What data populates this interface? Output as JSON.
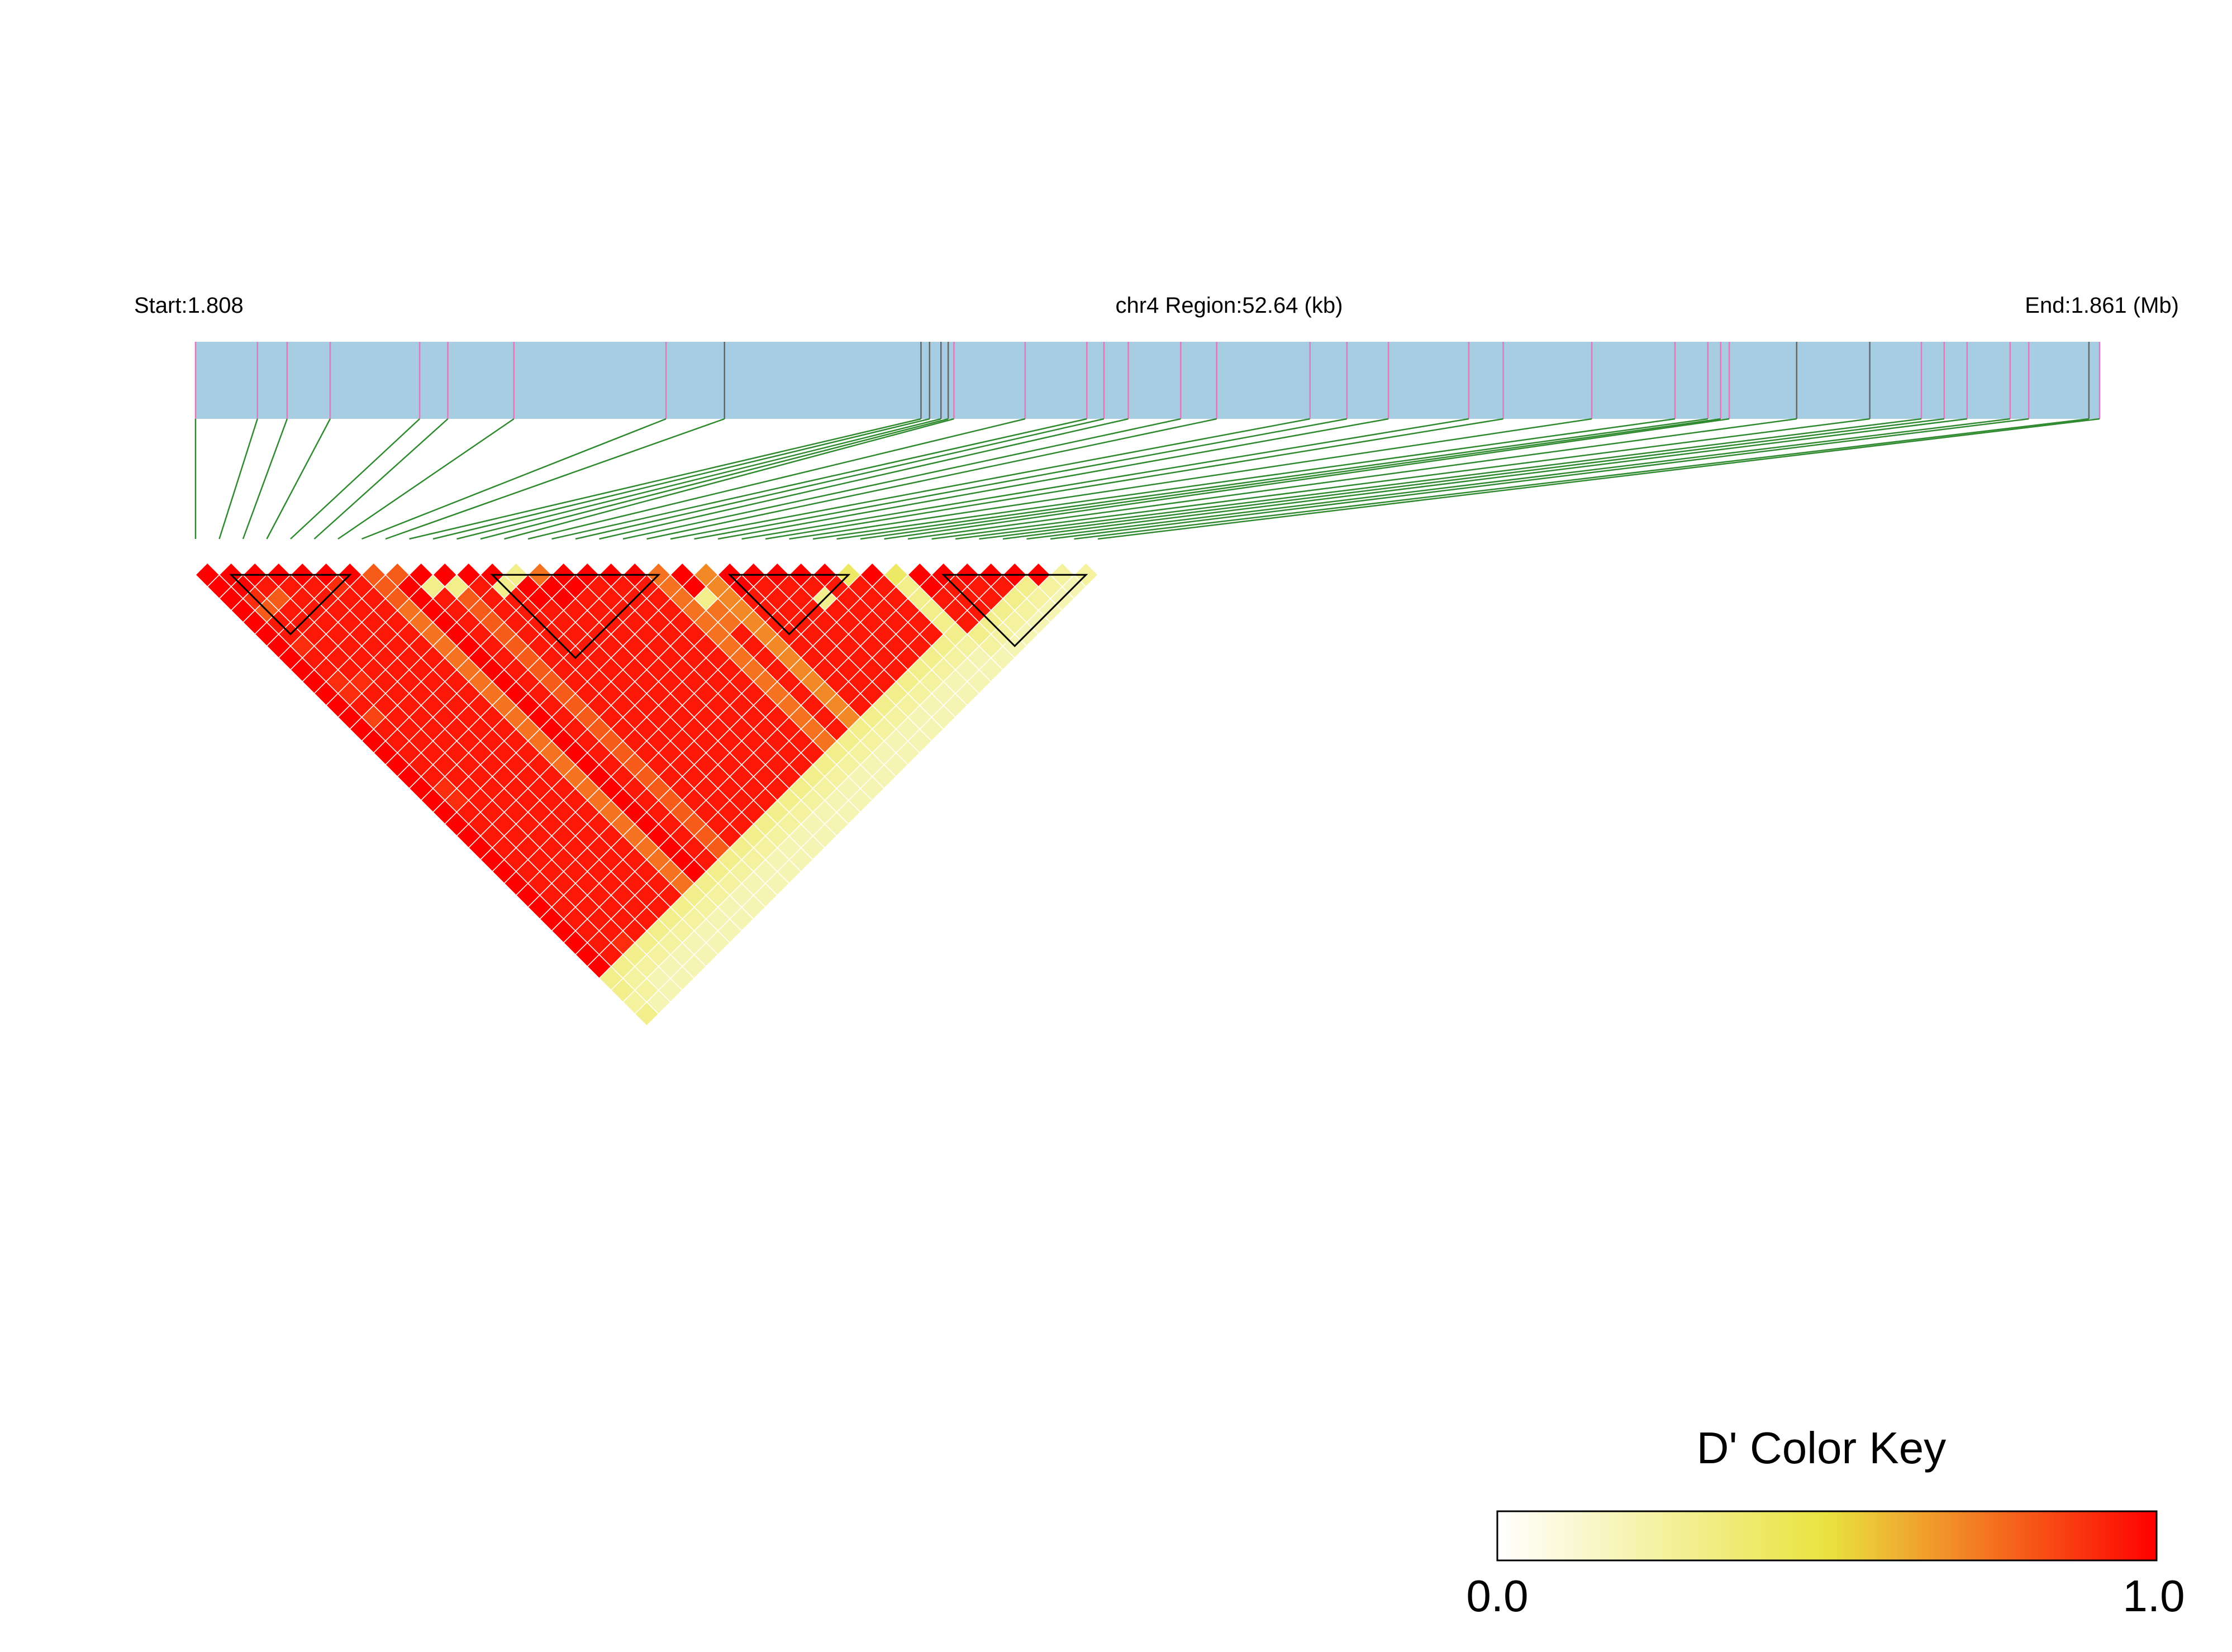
{
  "header": {
    "start_label": "Start:1.808",
    "region_label": "chr4 Region:52.64 (kb)",
    "end_label": "End:1.861 (Mb)"
  },
  "colors": {
    "track_fill": "#a7cde2",
    "snp_line_marked": "#e07ab8",
    "snp_line_plain": "#666666",
    "connector": "#2f8a2f",
    "block_outline": "#000000",
    "cell_border": "#ffffff",
    "scale": [
      "#ffffff",
      "#e9e33f",
      "#ff0000"
    ]
  },
  "snps": [
    {
      "pos": 0.0,
      "marked": true
    },
    {
      "pos": 0.0325,
      "marked": true
    },
    {
      "pos": 0.0481,
      "marked": true
    },
    {
      "pos": 0.0707,
      "marked": true
    },
    {
      "pos": 0.1177,
      "marked": true
    },
    {
      "pos": 0.1325,
      "marked": true
    },
    {
      "pos": 0.1672,
      "marked": true
    },
    {
      "pos": 0.2471,
      "marked": true
    },
    {
      "pos": 0.2778,
      "marked": false
    },
    {
      "pos": 0.381,
      "marked": false
    },
    {
      "pos": 0.3855,
      "marked": false
    },
    {
      "pos": 0.3915,
      "marked": false
    },
    {
      "pos": 0.3953,
      "marked": false
    },
    {
      "pos": 0.3983,
      "marked": true
    },
    {
      "pos": 0.4357,
      "marked": true
    },
    {
      "pos": 0.4681,
      "marked": true
    },
    {
      "pos": 0.4771,
      "marked": true
    },
    {
      "pos": 0.4899,
      "marked": true
    },
    {
      "pos": 0.5174,
      "marked": true
    },
    {
      "pos": 0.5363,
      "marked": true
    },
    {
      "pos": 0.5853,
      "marked": true
    },
    {
      "pos": 0.6047,
      "marked": true
    },
    {
      "pos": 0.6265,
      "marked": true
    },
    {
      "pos": 0.6687,
      "marked": true
    },
    {
      "pos": 0.6868,
      "marked": true
    },
    {
      "pos": 0.7333,
      "marked": true
    },
    {
      "pos": 0.777,
      "marked": true
    },
    {
      "pos": 0.7943,
      "marked": true
    },
    {
      "pos": 0.801,
      "marked": true
    },
    {
      "pos": 0.8055,
      "marked": true
    },
    {
      "pos": 0.8409,
      "marked": false
    },
    {
      "pos": 0.8793,
      "marked": false
    },
    {
      "pos": 0.9064,
      "marked": true
    },
    {
      "pos": 0.9184,
      "marked": true
    },
    {
      "pos": 0.9304,
      "marked": true
    },
    {
      "pos": 0.953,
      "marked": true
    },
    {
      "pos": 0.9628,
      "marked": true
    },
    {
      "pos": 0.9944,
      "marked": false
    },
    {
      "pos": 1.0,
      "marked": true
    }
  ],
  "matrix": {
    "n": 39,
    "d_prime_rows": [
      [
        1.0,
        1.0,
        1.0,
        1.0,
        1.0,
        1.0,
        1.0,
        1.0,
        1.0,
        1.0,
        1.0,
        1.0,
        1.0,
        1.0,
        1.0,
        1.0,
        1.0,
        1.0,
        1.0,
        1.0,
        1.0,
        1.0,
        1.0,
        1.0,
        1.0,
        1.0,
        1.0,
        1.0,
        1.0,
        1.0,
        1.0,
        1.0,
        1.0,
        1.0,
        0.3,
        0.3,
        0.25,
        0.3
      ],
      [
        1.0,
        1.0,
        0.9,
        0.8,
        0.95,
        0.95,
        0.9,
        0.95,
        0.95,
        0.9,
        0.9,
        0.95,
        0.85,
        0.95,
        0.95,
        0.95,
        0.95,
        0.95,
        0.9,
        0.9,
        0.95,
        0.95,
        0.95,
        0.95,
        0.95,
        0.95,
        0.95,
        0.95,
        0.95,
        0.95,
        0.95,
        0.95,
        0.95,
        0.3,
        0.25,
        0.25,
        0.2
      ],
      [
        1.0,
        0.95,
        0.8,
        0.95,
        0.95,
        0.95,
        0.95,
        0.95,
        0.95,
        0.9,
        0.95,
        0.95,
        0.95,
        0.95,
        0.95,
        0.95,
        0.95,
        0.95,
        0.95,
        0.95,
        0.95,
        0.95,
        0.95,
        0.95,
        0.95,
        0.95,
        0.95,
        0.95,
        0.95,
        0.95,
        0.95,
        0.9,
        0.3,
        0.25,
        0.2,
        0.2
      ],
      [
        1.0,
        0.95,
        0.95,
        0.95,
        0.95,
        0.95,
        0.95,
        0.95,
        0.95,
        0.95,
        0.95,
        0.95,
        0.95,
        0.95,
        0.95,
        0.95,
        0.95,
        0.95,
        0.95,
        0.95,
        0.95,
        0.95,
        0.95,
        0.95,
        0.95,
        0.95,
        0.95,
        0.95,
        0.95,
        0.95,
        0.95,
        0.3,
        0.25,
        0.2,
        0.2
      ],
      [
        1.0,
        0.95,
        0.95,
        0.95,
        0.95,
        0.95,
        0.95,
        0.95,
        0.95,
        0.95,
        0.95,
        0.95,
        0.95,
        0.95,
        0.95,
        0.95,
        0.95,
        0.95,
        0.95,
        0.95,
        0.95,
        0.95,
        0.95,
        0.95,
        0.95,
        0.95,
        0.95,
        0.95,
        0.95,
        0.95,
        0.3,
        0.25,
        0.2,
        0.2
      ],
      [
        1.0,
        0.9,
        0.95,
        0.95,
        0.95,
        0.95,
        0.95,
        0.95,
        0.95,
        0.95,
        0.95,
        0.95,
        0.95,
        0.95,
        0.95,
        0.95,
        0.95,
        0.95,
        0.95,
        0.95,
        0.95,
        0.95,
        0.95,
        0.95,
        0.95,
        0.95,
        0.95,
        0.95,
        0.95,
        0.3,
        0.25,
        0.2,
        0.2
      ],
      [
        1.0,
        0.95,
        0.95,
        0.95,
        0.95,
        0.95,
        0.95,
        0.95,
        0.95,
        0.95,
        0.95,
        0.95,
        0.95,
        0.95,
        0.95,
        0.95,
        0.95,
        0.95,
        0.95,
        0.95,
        0.95,
        0.95,
        0.95,
        0.95,
        0.95,
        0.95,
        0.95,
        0.95,
        0.3,
        0.25,
        0.2,
        0.2
      ],
      [
        0.8,
        0.8,
        0.8,
        0.75,
        0.75,
        0.75,
        0.75,
        0.75,
        0.75,
        0.75,
        0.75,
        0.75,
        0.75,
        0.75,
        0.75,
        0.75,
        0.75,
        0.75,
        0.75,
        0.75,
        0.75,
        0.75,
        0.75,
        0.75,
        0.75,
        0.75,
        0.75,
        0.3,
        0.25,
        0.2,
        0.2
      ],
      [
        0.8,
        1.0,
        1.0,
        1.0,
        1.0,
        1.0,
        1.0,
        1.0,
        1.0,
        1.0,
        1.0,
        1.0,
        1.0,
        1.0,
        1.0,
        1.0,
        1.0,
        1.0,
        1.0,
        1.0,
        1.0,
        1.0,
        1.0,
        1.0,
        1.0,
        1.0,
        0.3,
        0.25,
        0.2,
        0.2
      ],
      [
        1.0,
        0.3,
        0.95,
        0.95,
        0.95,
        0.95,
        0.95,
        0.95,
        0.95,
        0.95,
        0.95,
        0.95,
        0.95,
        0.95,
        0.95,
        0.95,
        0.95,
        0.95,
        0.95,
        0.95,
        0.95,
        0.95,
        0.95,
        0.95,
        0.95,
        0.3,
        0.25,
        0.2,
        0.2
      ],
      [
        1.0,
        0.3,
        0.8,
        0.8,
        0.8,
        0.8,
        0.8,
        0.8,
        0.8,
        0.8,
        0.8,
        0.8,
        0.8,
        0.8,
        0.8,
        0.8,
        0.8,
        0.8,
        0.8,
        0.8,
        0.8,
        0.8,
        0.8,
        0.8,
        0.3,
        0.25,
        0.2,
        0.2
      ],
      [
        1.0,
        0.95,
        0.95,
        0.95,
        0.95,
        0.95,
        0.95,
        0.95,
        0.95,
        0.95,
        0.95,
        0.95,
        0.95,
        0.95,
        0.95,
        0.95,
        0.95,
        0.95,
        0.95,
        0.95,
        0.95,
        0.95,
        0.95,
        0.3,
        0.25,
        0.2,
        0.2
      ],
      [
        1.0,
        0.3,
        0.95,
        0.95,
        0.95,
        0.95,
        0.95,
        0.95,
        0.95,
        0.95,
        0.95,
        0.95,
        0.95,
        0.95,
        0.95,
        0.95,
        0.95,
        0.95,
        0.95,
        0.95,
        0.95,
        0.95,
        0.3,
        0.25,
        0.2,
        0.2
      ],
      [
        0.3,
        1.0,
        1.0,
        0.95,
        0.95,
        0.95,
        0.95,
        0.95,
        0.95,
        0.95,
        0.95,
        0.95,
        0.95,
        0.95,
        0.95,
        0.95,
        0.95,
        0.95,
        0.95,
        0.95,
        0.95,
        0.3,
        0.25,
        0.2,
        0.2
      ],
      [
        0.75,
        1.0,
        1.0,
        0.95,
        0.95,
        0.95,
        0.95,
        0.95,
        0.95,
        0.95,
        0.95,
        0.95,
        0.95,
        0.95,
        0.95,
        0.95,
        0.95,
        0.95,
        0.95,
        0.95,
        0.3,
        0.25,
        0.2,
        0.2
      ],
      [
        1.0,
        1.0,
        0.95,
        0.95,
        0.95,
        0.95,
        0.95,
        0.95,
        0.95,
        0.95,
        0.95,
        0.95,
        0.95,
        0.95,
        0.95,
        0.95,
        0.95,
        0.95,
        0.95,
        0.3,
        0.25,
        0.2,
        0.2
      ],
      [
        1.0,
        0.95,
        0.95,
        0.95,
        0.95,
        0.95,
        0.95,
        0.95,
        0.95,
        0.95,
        0.95,
        0.95,
        0.95,
        0.95,
        0.95,
        0.95,
        0.95,
        0.95,
        0.3,
        0.25,
        0.2,
        0.2
      ],
      [
        1.0,
        0.95,
        0.95,
        0.95,
        0.95,
        0.95,
        0.95,
        0.95,
        0.95,
        0.95,
        0.95,
        0.95,
        0.95,
        0.95,
        0.95,
        0.95,
        0.95,
        0.3,
        0.25,
        0.2,
        0.2
      ],
      [
        1.0,
        0.95,
        0.95,
        0.95,
        0.95,
        0.95,
        0.95,
        0.95,
        0.95,
        0.95,
        0.95,
        0.95,
        0.95,
        0.95,
        0.95,
        0.95,
        0.3,
        0.25,
        0.2,
        0.2
      ],
      [
        0.75,
        0.75,
        0.75,
        0.75,
        0.75,
        0.75,
        0.75,
        0.75,
        0.75,
        0.75,
        0.75,
        0.75,
        0.75,
        0.75,
        0.75,
        0.3,
        0.25,
        0.2,
        0.2
      ],
      [
        1.0,
        1.0,
        0.3,
        0.75,
        0.75,
        0.95,
        0.95,
        0.95,
        0.95,
        0.95,
        0.95,
        0.95,
        0.95,
        0.95,
        0.3,
        0.25,
        0.2,
        0.2
      ],
      [
        0.7,
        0.7,
        0.7,
        0.7,
        0.7,
        0.7,
        0.7,
        0.7,
        0.7,
        0.7,
        0.7,
        0.7,
        0.7,
        0.3,
        0.25,
        0.2,
        0.2
      ],
      [
        1.0,
        1.0,
        0.95,
        0.95,
        0.95,
        0.95,
        0.95,
        0.95,
        0.95,
        0.95,
        0.95,
        0.95,
        0.3,
        0.25,
        0.2,
        0.2
      ],
      [
        1.0,
        0.95,
        0.95,
        0.95,
        0.95,
        0.95,
        0.95,
        0.95,
        0.95,
        0.95,
        0.95,
        0.3,
        0.25,
        0.2,
        0.2
      ],
      [
        1.0,
        0.95,
        0.95,
        0.95,
        0.95,
        0.95,
        0.95,
        0.95,
        0.95,
        0.95,
        0.3,
        0.25,
        0.2,
        0.2
      ],
      [
        1.0,
        0.95,
        0.3,
        0.95,
        0.95,
        0.95,
        0.95,
        0.95,
        0.95,
        0.3,
        0.25,
        0.2,
        0.2
      ],
      [
        1.0,
        0.95,
        0.95,
        0.95,
        0.95,
        0.95,
        0.95,
        0.95,
        0.3,
        0.25,
        0.2,
        0.2
      ],
      [
        0.4,
        0.95,
        0.95,
        0.95,
        0.95,
        0.95,
        0.95,
        0.3,
        0.25,
        0.2,
        0.2
      ],
      [
        1.0,
        0.95,
        0.95,
        0.95,
        0.95,
        0.95,
        0.3,
        0.25,
        0.2,
        0.2
      ],
      [
        0.4,
        0.3,
        0.3,
        0.3,
        0.3,
        0.3,
        0.25,
        0.2,
        0.2
      ],
      [
        1.0,
        1.0,
        0.95,
        0.95,
        0.95,
        0.3,
        0.25,
        0.2,
        0.2
      ],
      [
        1.0,
        0.95,
        0.95,
        0.95,
        0.3,
        0.25,
        0.2,
        0.2
      ],
      [
        1.0,
        0.95,
        0.95,
        0.3,
        0.25,
        0.2,
        0.2
      ],
      [
        1.0,
        0.95,
        0.3,
        0.25,
        0.2,
        0.2
      ],
      [
        1.0,
        0.3,
        0.25,
        0.2,
        0.2
      ],
      [
        1.0,
        0.25,
        0.2,
        0.2
      ],
      [
        0.25,
        0.2,
        0.2
      ],
      [
        0.25,
        0.2
      ],
      [
        0.25
      ]
    ],
    "blocks": [
      [
        1,
        7
      ],
      [
        12,
        20
      ],
      [
        22,
        28
      ],
      [
        31,
        38
      ]
    ]
  },
  "color_key": {
    "title": "D' Color Key",
    "min_label": "0.0",
    "max_label": "1.0"
  }
}
